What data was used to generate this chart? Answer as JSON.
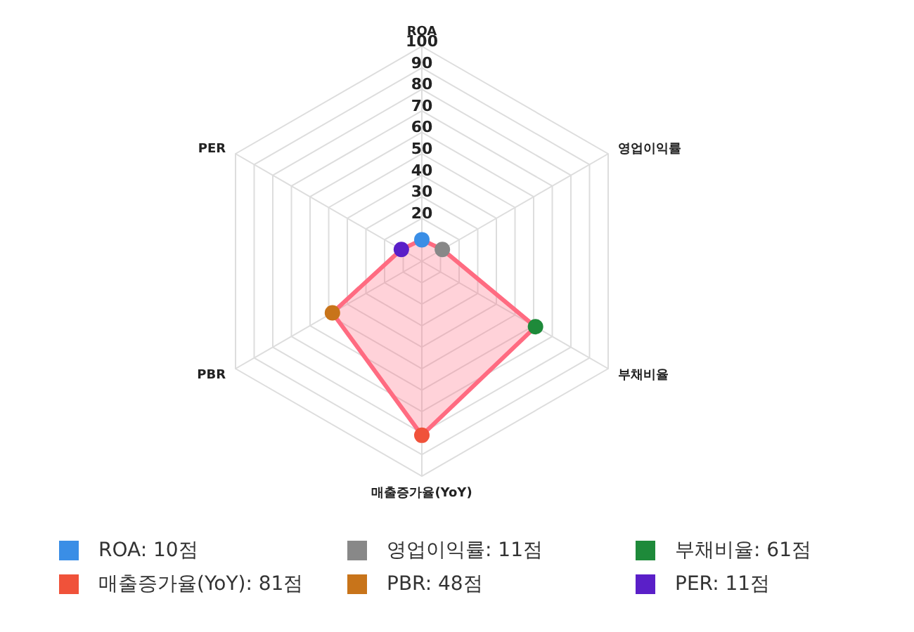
{
  "chart_data": {
    "type": "radar",
    "categories": [
      "ROA",
      "영업이익률",
      "부채비율",
      "매출증가율(YoY)",
      "PBR",
      "PER"
    ],
    "series": [
      {
        "color": "#ff6b81",
        "values": [
          10,
          11,
          61,
          81,
          48,
          11
        ],
        "colors": [
          "#3a8ee6",
          "#888888",
          "#1e8a3a",
          "#f0523a",
          "#c8741a",
          "#5a1fc8"
        ]
      }
    ],
    "annotations": [
      "ROA: 10점",
      "영업이익률: 11점",
      "부채비율: 61점",
      "매출증가율(YoY): 81점",
      "PBR: 48점",
      "PER: 11점"
    ],
    "ylim": [
      0,
      100
    ],
    "yticks": [
      20,
      30,
      40,
      50,
      60,
      70,
      80,
      90,
      100
    ],
    "grid": true,
    "marker": "circle"
  }
}
